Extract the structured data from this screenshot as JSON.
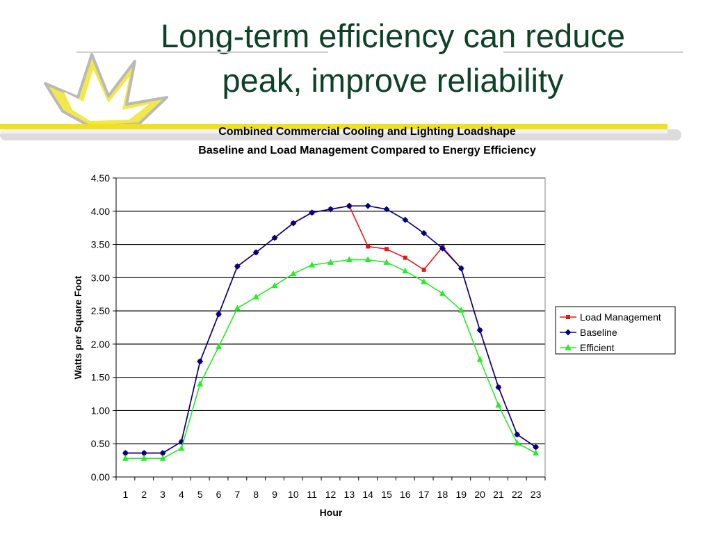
{
  "slide": {
    "title_line1": "Long-term efficiency can reduce",
    "title_line2": "peak, improve reliability",
    "logo_icon": "lightning-burst-icon",
    "accent_color": "#f0e020",
    "title_color": "#0d4226"
  },
  "chart_data": {
    "type": "line",
    "title": "Combined Commercial Cooling and Lighting Loadshape",
    "subtitle": "Baseline and Load Management Compared to Energy Efficiency",
    "xlabel": "Hour",
    "ylabel": "Watts per Square Foot",
    "ylim": [
      0,
      4.5
    ],
    "yticks": [
      "0.00",
      "0.50",
      "1.00",
      "1.50",
      "2.00",
      "2.50",
      "3.00",
      "3.50",
      "4.00",
      "4.50"
    ],
    "x": [
      1,
      2,
      3,
      4,
      5,
      6,
      7,
      8,
      9,
      10,
      11,
      12,
      13,
      14,
      15,
      16,
      17,
      18,
      19,
      20,
      21,
      22,
      23
    ],
    "grid": "horizontal",
    "legend_position": "right",
    "series": [
      {
        "name": "Load Management",
        "color": "#e8161b",
        "marker": "square",
        "values": [
          0.36,
          0.36,
          0.36,
          0.53,
          1.74,
          2.45,
          3.17,
          3.38,
          3.6,
          3.82,
          3.98,
          4.03,
          4.08,
          3.47,
          3.43,
          3.3,
          3.12,
          3.46,
          3.14,
          2.21,
          1.35,
          0.64,
          0.45
        ]
      },
      {
        "name": "Baseline",
        "color": "#000080",
        "marker": "diamond",
        "values": [
          0.36,
          0.36,
          0.36,
          0.53,
          1.74,
          2.45,
          3.17,
          3.38,
          3.6,
          3.82,
          3.98,
          4.03,
          4.08,
          4.08,
          4.03,
          3.87,
          3.67,
          3.44,
          3.14,
          2.21,
          1.35,
          0.64,
          0.45
        ]
      },
      {
        "name": "Efficient",
        "color": "#22ee22",
        "marker": "triangle",
        "values": [
          0.28,
          0.28,
          0.28,
          0.43,
          1.4,
          1.96,
          2.54,
          2.71,
          2.88,
          3.06,
          3.19,
          3.23,
          3.27,
          3.27,
          3.23,
          3.1,
          2.94,
          2.76,
          2.51,
          1.77,
          1.08,
          0.51,
          0.36
        ]
      }
    ]
  }
}
